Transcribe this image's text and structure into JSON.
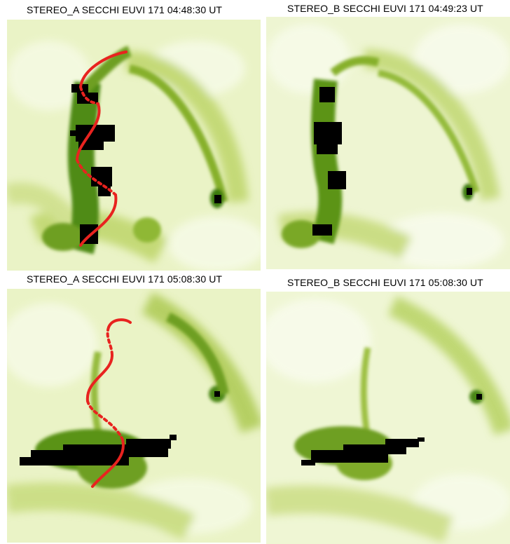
{
  "panels": [
    {
      "title": "STEREO_A SECCHI EUVI 171 04:48:30 UT",
      "observatory": "STEREO_A",
      "instrument": "SECCHI EUVI 171",
      "time": "04:48:30 UT",
      "has_red_trace": true
    },
    {
      "title": "STEREO_B SECCHI EUVI 171 04:49:23 UT",
      "observatory": "STEREO_B",
      "instrument": "SECCHI EUVI 171",
      "time": "04:49:23 UT",
      "has_red_trace": false
    },
    {
      "title": "STEREO_A SECCHI EUVI 171 05:08:30 UT",
      "observatory": "STEREO_A",
      "instrument": "SECCHI EUVI 171",
      "time": "05:08:30 UT",
      "has_red_trace": true
    },
    {
      "title": "STEREO_B SECCHI EUVI 171 05:08:30 UT",
      "observatory": "STEREO_B",
      "instrument": "SECCHI EUVI 171",
      "time": "05:08:30 UT",
      "has_red_trace": false
    }
  ],
  "colors": {
    "background": "#f3f8dc",
    "emission_mid": "#a8c64a",
    "emission_dark": "#3f7c0e",
    "saturated": "#000000",
    "trace": "#e8231f"
  }
}
